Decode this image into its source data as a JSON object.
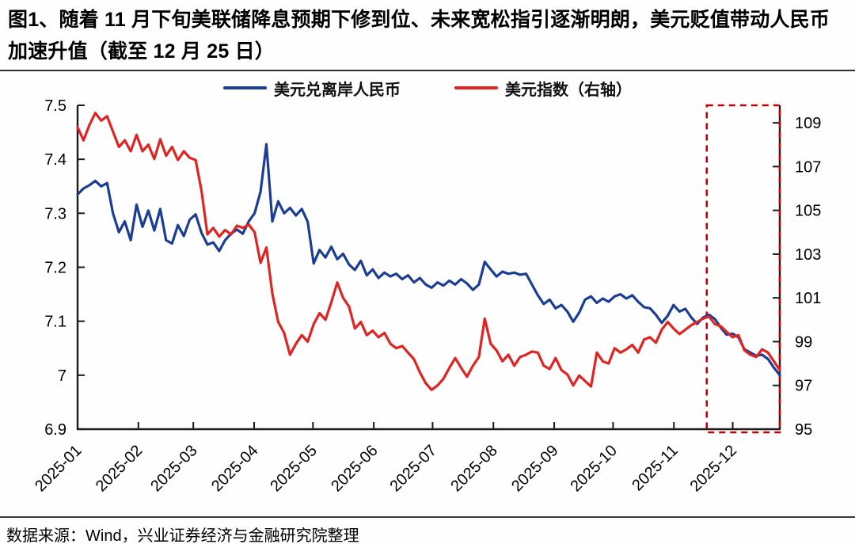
{
  "figure": {
    "title": "图1、随着 11 月下旬美联储降息预期下修到位、未来宽松指引逐渐明朗，美元贬值带动人民币加速升值（截至 12 月 25 日）"
  },
  "source_note": "数据来源：Wind，兴业证券经济与金融研究院整理",
  "chart_data": {
    "type": "line",
    "x_tick_labels": [
      "2025-01",
      "2025-02",
      "2025-03",
      "2025-04",
      "2025-05",
      "2025-06",
      "2025-07",
      "2025-08",
      "2025-09",
      "2025-10",
      "2025-11",
      "2025-12"
    ],
    "x_range": {
      "start": "2025-01",
      "end": "2025-12-25"
    },
    "left_axis": {
      "min": 6.9,
      "max": 7.5,
      "ticks": [
        7.5,
        7.4,
        7.3,
        7.2,
        7.1,
        7.0,
        6.9
      ],
      "tick_labels": [
        "7.5",
        "7.4",
        "7.3",
        "7.2",
        "7.1",
        "7",
        "6.9"
      ]
    },
    "right_axis": {
      "min": 95,
      "max": 109.8,
      "ticks": [
        109,
        107,
        105,
        103,
        101,
        99,
        97,
        95
      ],
      "tick_labels": [
        "109",
        "107",
        "105",
        "103",
        "101",
        "99",
        "97",
        "95"
      ]
    },
    "series": [
      {
        "name": "美元兑离岸人民币",
        "axis": "left",
        "color": "#1c3d94",
        "values": [
          7.335,
          7.346,
          7.352,
          7.36,
          7.35,
          7.356,
          7.3,
          7.265,
          7.285,
          7.25,
          7.316,
          7.275,
          7.305,
          7.268,
          7.308,
          7.25,
          7.244,
          7.278,
          7.258,
          7.288,
          7.298,
          7.264,
          7.242,
          7.246,
          7.23,
          7.25,
          7.262,
          7.27,
          7.262,
          7.285,
          7.3,
          7.34,
          7.428,
          7.285,
          7.322,
          7.3,
          7.31,
          7.296,
          7.308,
          7.284,
          7.207,
          7.232,
          7.218,
          7.238,
          7.215,
          7.225,
          7.205,
          7.195,
          7.212,
          7.185,
          7.196,
          7.18,
          7.19,
          7.183,
          7.188,
          7.178,
          7.185,
          7.172,
          7.18,
          7.168,
          7.162,
          7.172,
          7.166,
          7.175,
          7.168,
          7.178,
          7.17,
          7.158,
          7.168,
          7.21,
          7.196,
          7.183,
          7.192,
          7.188,
          7.19,
          7.186,
          7.188,
          7.168,
          7.148,
          7.132,
          7.14,
          7.124,
          7.13,
          7.118,
          7.099,
          7.116,
          7.14,
          7.146,
          7.134,
          7.142,
          7.136,
          7.146,
          7.15,
          7.142,
          7.148,
          7.136,
          7.126,
          7.124,
          7.112,
          7.097,
          7.11,
          7.13,
          7.118,
          7.123,
          7.107,
          7.095,
          7.107,
          7.112,
          7.104,
          7.088,
          7.075,
          7.077,
          7.07,
          7.048,
          7.042,
          7.036,
          7.038,
          7.03,
          7.014,
          7.0
        ]
      },
      {
        "name": "美元指数（右轴）",
        "axis": "right",
        "color": "#df2422",
        "values": [
          108.8,
          108.2,
          108.9,
          109.45,
          109.1,
          109.3,
          108.6,
          107.9,
          108.2,
          107.7,
          108.45,
          107.7,
          108.0,
          107.35,
          108.25,
          107.5,
          107.9,
          107.3,
          107.7,
          107.4,
          107.3,
          105.9,
          103.9,
          104.2,
          103.8,
          104.1,
          103.9,
          104.3,
          104.2,
          104.35,
          104.0,
          102.6,
          103.3,
          101.2,
          99.9,
          99.4,
          98.4,
          98.9,
          99.3,
          99.0,
          99.8,
          100.3,
          100.0,
          100.8,
          101.7,
          101.0,
          100.6,
          99.6,
          99.9,
          99.3,
          99.5,
          99.2,
          99.4,
          98.9,
          98.7,
          98.8,
          98.5,
          98.2,
          97.6,
          97.1,
          96.8,
          97.0,
          97.3,
          97.8,
          98.25,
          97.8,
          97.4,
          97.9,
          98.3,
          100.05,
          98.9,
          98.6,
          98.1,
          98.4,
          97.9,
          98.3,
          98.4,
          98.55,
          98.5,
          97.9,
          97.75,
          98.25,
          97.7,
          97.5,
          97.0,
          97.45,
          97.2,
          96.95,
          98.5,
          98.1,
          98.0,
          98.7,
          98.5,
          98.65,
          98.85,
          98.5,
          99.1,
          99.2,
          98.95,
          99.55,
          99.9,
          99.6,
          99.35,
          99.55,
          99.75,
          99.9,
          100.05,
          100.15,
          99.8,
          99.7,
          99.45,
          99.2,
          99.3,
          98.6,
          98.4,
          98.3,
          98.65,
          98.5,
          98.1,
          97.7
        ]
      }
    ],
    "highlight_box": {
      "x_start_frac": 0.896,
      "x_end_frac": 1.0,
      "color": "#c00000"
    },
    "legend": {
      "position": "top",
      "entries": [
        "美元兑离岸人民币",
        "美元指数（右轴）"
      ]
    },
    "grid": false
  }
}
